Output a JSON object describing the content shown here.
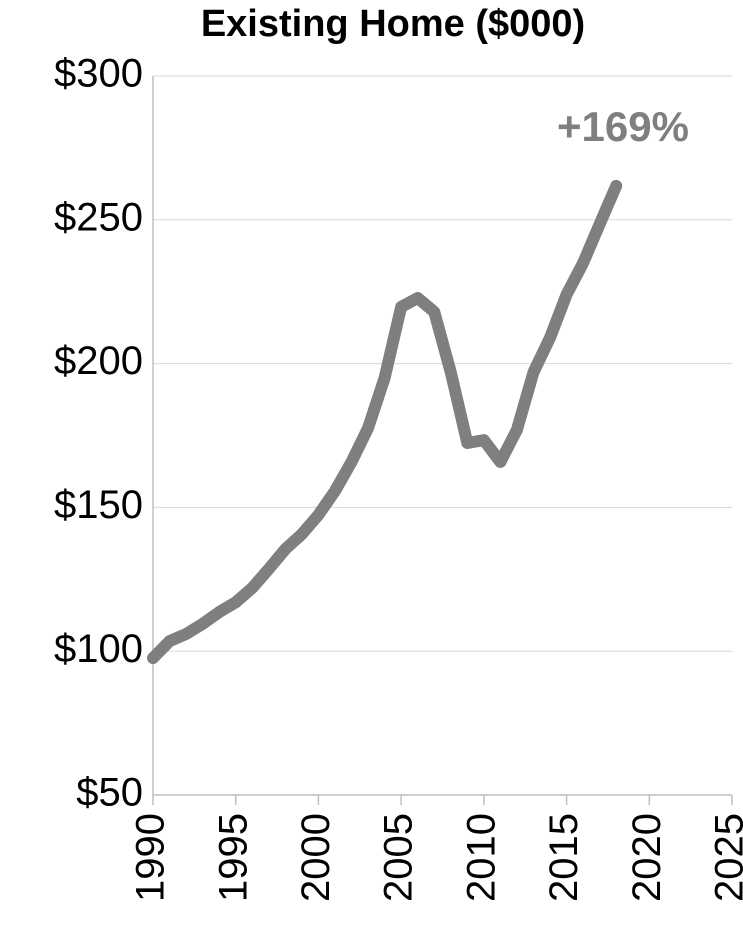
{
  "chart_data": {
    "type": "line",
    "title": "Existing Home ($000)",
    "annotation": "+169%",
    "x": [
      1990,
      1991,
      1992,
      1993,
      1994,
      1995,
      1996,
      1997,
      1998,
      1999,
      2000,
      2001,
      2002,
      2003,
      2004,
      2005,
      2006,
      2007,
      2008,
      2009,
      2010,
      2011,
      2012,
      2013,
      2014,
      2015,
      2016,
      2017,
      2018
    ],
    "series": [
      {
        "name": "Existing Home",
        "color": "#7f7f7f",
        "values": [
          97.6,
          103.5,
          106,
          109.5,
          113.6,
          117,
          122,
          128.6,
          135.5,
          140.7,
          147.4,
          155.7,
          165.8,
          177.6,
          195,
          219.7,
          222.8,
          218,
          197,
          172.4,
          173.4,
          165.8,
          177,
          197,
          209,
          224,
          235,
          248.5,
          261.8
        ]
      }
    ],
    "xlim": [
      1990,
      2025
    ],
    "xticks": [
      1990,
      1995,
      2000,
      2005,
      2010,
      2015,
      2020,
      2025
    ],
    "ylim": [
      50,
      300
    ],
    "yticks": [
      {
        "value": 50,
        "label": "$50"
      },
      {
        "value": 100,
        "label": "$100"
      },
      {
        "value": 150,
        "label": "$150"
      },
      {
        "value": 200,
        "label": "$200"
      },
      {
        "value": 250,
        "label": "$250"
      },
      {
        "value": 300,
        "label": "$300"
      }
    ],
    "grid": true
  }
}
